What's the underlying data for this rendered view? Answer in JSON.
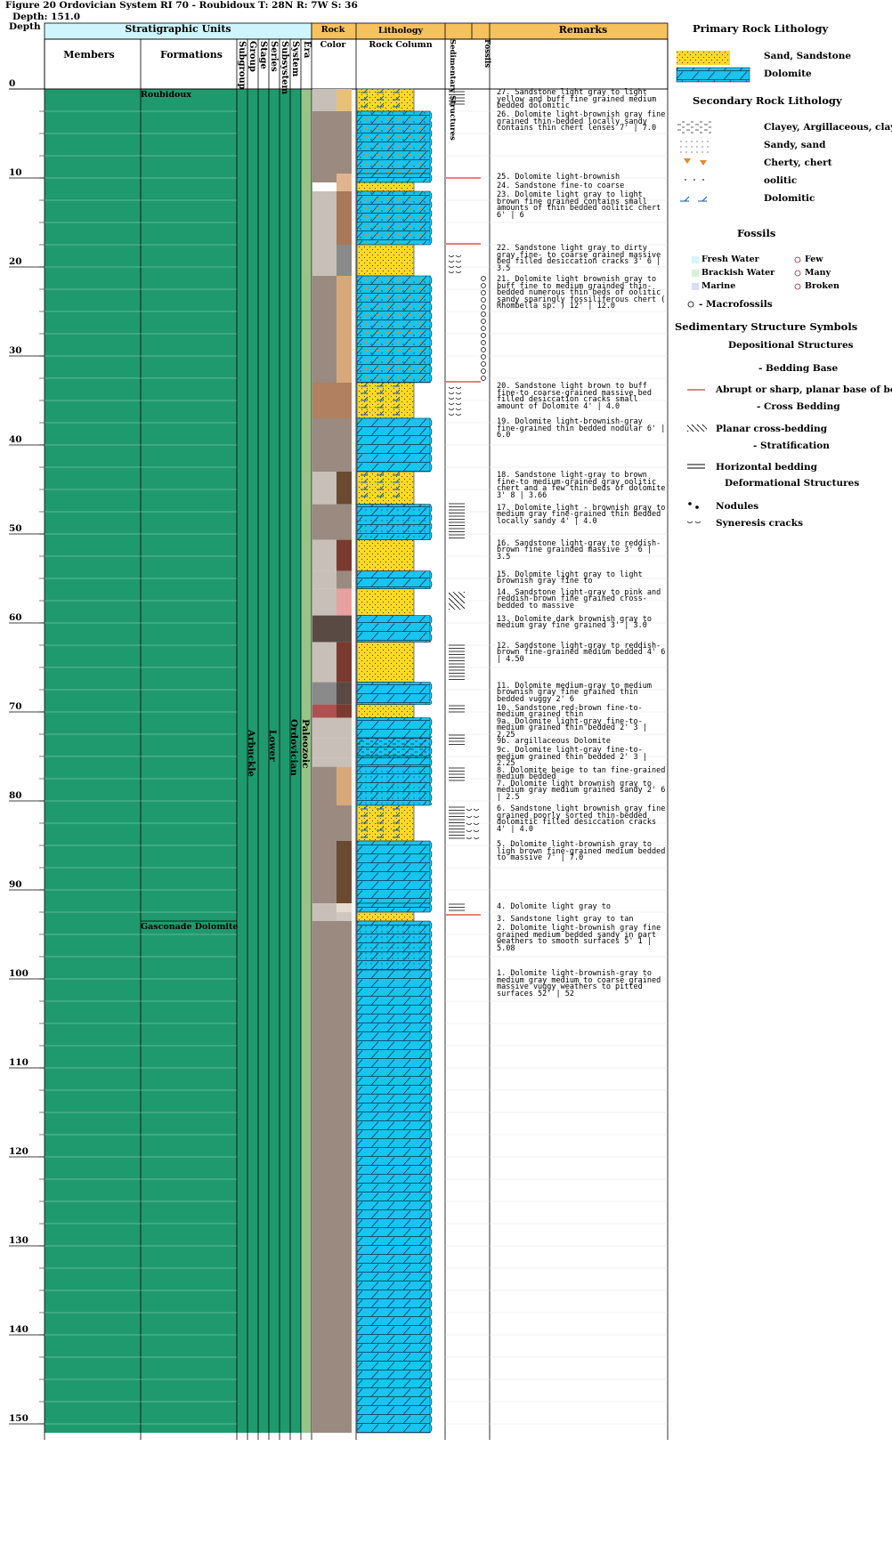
{
  "header": {
    "title": "Figure 20 Ordovician System RI 70 - Roubidoux T: 28N R: 7W S: 36",
    "depth": "Depth: 151.0",
    "depth_col_label": "Depth"
  },
  "columns": {
    "strat_units": "Stratigraphic Units",
    "members": "Members",
    "formations": "Formations",
    "subgroup": "Subgroup",
    "group": "Group",
    "stage": "Stage",
    "series": "Series",
    "subsystem": "Subsystem",
    "system": "System",
    "era": "Era",
    "rock": "Rock",
    "color": "Color",
    "lithology": "Lithology",
    "rock_column": "Rock Column",
    "sed_structures": "Sedimentary Structures",
    "fossils": "Fossils",
    "remarks": "Remarks"
  },
  "depth_ticks": [
    "0",
    "10",
    "20",
    "30",
    "40",
    "50",
    "60",
    "70",
    "80",
    "90",
    "100",
    "110",
    "120",
    "130",
    "140",
    "150"
  ],
  "formation_labels": [
    {
      "text": "Roubidoux"
    },
    {
      "text": "Gasconade Dolomite"
    }
  ],
  "vertical_units": {
    "group": "Arbuckle",
    "series": "Lower",
    "system": "Ordovician",
    "era": "Paleozoic"
  },
  "layers": [
    {
      "top": 0.0,
      "bottom": 2.5,
      "litho": "sandstone",
      "sec": "dolomitic",
      "colors": [
        "#c8c0b8",
        "#e8c07a"
      ]
    },
    {
      "top": 2.5,
      "bottom": 9.5,
      "litho": "dolomite",
      "sec": "sandy-cherty",
      "colors": [
        "#9b8a80",
        "#9b8a80"
      ]
    },
    {
      "top": 9.5,
      "bottom": 10.5,
      "litho": "dolomite",
      "sec": "none",
      "colors": [
        "#9b8a80",
        "#e0b48c"
      ]
    },
    {
      "top": 10.5,
      "bottom": 11.5,
      "litho": "sandstone",
      "sec": "none",
      "colors": [
        "#ffffff",
        "#e0b48c"
      ]
    },
    {
      "top": 11.5,
      "bottom": 17.5,
      "litho": "dolomite",
      "sec": "oolitic-cherty",
      "colors": [
        "#c8c0b8",
        "#a87858"
      ]
    },
    {
      "top": 17.5,
      "bottom": 21.0,
      "litho": "sandstone",
      "sec": "none",
      "colors": [
        "#c8c0b8",
        "#8a8a8a"
      ]
    },
    {
      "top": 21.0,
      "bottom": 33.0,
      "litho": "dolomite",
      "sec": "oolitic-cherty",
      "colors": [
        "#9b8a80",
        "#d9a87a"
      ]
    },
    {
      "top": 33.0,
      "bottom": 37.0,
      "litho": "sandstone",
      "sec": "dolomitic",
      "colors": [
        "#b08060",
        "#b08060"
      ]
    },
    {
      "top": 37.0,
      "bottom": 43.0,
      "litho": "dolomite",
      "sec": "none",
      "colors": [
        "#9b8a80",
        "#9b8a80"
      ]
    },
    {
      "top": 43.0,
      "bottom": 46.66,
      "litho": "sandstone",
      "sec": "dolomitic",
      "colors": [
        "#c8c0b8",
        "#6a4a30"
      ]
    },
    {
      "top": 46.66,
      "bottom": 50.66,
      "litho": "dolomite",
      "sec": "sandy",
      "colors": [
        "#9b8a80",
        "#9b8a80"
      ]
    },
    {
      "top": 50.66,
      "bottom": 54.16,
      "litho": "sandstone",
      "sec": "none",
      "colors": [
        "#c8c0b8",
        "#7a3a30"
      ]
    },
    {
      "top": 54.16,
      "bottom": 56.16,
      "litho": "dolomite",
      "sec": "none",
      "colors": [
        "#c8c0b8",
        "#9b8a80"
      ]
    },
    {
      "top": 56.16,
      "bottom": 59.16,
      "litho": "sandstone",
      "sec": "none",
      "colors": [
        "#c8c0b8",
        "#e8a0a0"
      ]
    },
    {
      "top": 59.16,
      "bottom": 62.16,
      "litho": "dolomite",
      "sec": "none",
      "colors": [
        "#5a4a44",
        "#5a4a44"
      ]
    },
    {
      "top": 62.16,
      "bottom": 66.66,
      "litho": "sandstone",
      "sec": "none",
      "colors": [
        "#c8c0b8",
        "#7a3a30"
      ]
    },
    {
      "top": 66.66,
      "bottom": 69.16,
      "litho": "dolomite",
      "sec": "none",
      "colors": [
        "#8a8a8a",
        "#5a4a44"
      ]
    },
    {
      "top": 69.16,
      "bottom": 70.66,
      "litho": "sandstone",
      "sec": "none",
      "colors": [
        "#b05050",
        "#7a3a30"
      ]
    },
    {
      "top": 70.66,
      "bottom": 72.91,
      "litho": "dolomite",
      "sec": "none",
      "colors": [
        "#c8c0b8",
        "#c8c0b8"
      ]
    },
    {
      "top": 72.91,
      "bottom": 75.16,
      "litho": "dolomite",
      "sec": "clayey",
      "colors": [
        "#c8c0b8",
        "#c8c0b8"
      ]
    },
    {
      "top": 75.16,
      "bottom": 76.16,
      "litho": "dolomite",
      "sec": "none",
      "colors": [
        "#c8c0b8",
        "#c8c0b8"
      ]
    },
    {
      "top": 76.16,
      "bottom": 80.5,
      "litho": "dolomite",
      "sec": "sandy",
      "colors": [
        "#9b8a80",
        "#d9a87a"
      ]
    },
    {
      "top": 80.5,
      "bottom": 84.5,
      "litho": "sandstone",
      "sec": "dolomitic",
      "colors": [
        "#9b8a80",
        "#9b8a80"
      ]
    },
    {
      "top": 84.5,
      "bottom": 91.5,
      "litho": "dolomite",
      "sec": "none",
      "colors": [
        "#9b8a80",
        "#6a4a30"
      ]
    },
    {
      "top": 91.5,
      "bottom": 92.5,
      "litho": "dolomite",
      "sec": "none",
      "colors": [
        "#c8c0b8",
        "#e8dcd0"
      ]
    },
    {
      "top": 92.5,
      "bottom": 93.5,
      "litho": "sandstone",
      "sec": "none",
      "colors": [
        "#c8c0b8",
        "#d0c8c0"
      ]
    },
    {
      "top": 93.5,
      "bottom": 99.0,
      "litho": "dolomite",
      "sec": "sandy",
      "colors": [
        "#9b8a80",
        "#9b8a80"
      ]
    },
    {
      "top": 99.0,
      "bottom": 151.0,
      "litho": "dolomite",
      "sec": "none",
      "colors": [
        "#9b8a80",
        "#9b8a80"
      ]
    }
  ],
  "sed_structures": [
    {
      "top": 0.3,
      "bottom": 1.8,
      "type": "horizontal"
    },
    {
      "top": 10.0,
      "bottom": 10.2,
      "type": "base"
    },
    {
      "top": 17.4,
      "bottom": 17.6,
      "type": "base"
    },
    {
      "top": 18.5,
      "bottom": 20.5,
      "type": "syneresis"
    },
    {
      "top": 32.9,
      "bottom": 33.1,
      "type": "base"
    },
    {
      "top": 33.3,
      "bottom": 36.8,
      "type": "syneresis"
    },
    {
      "top": 46.6,
      "bottom": 50.6,
      "type": "horizontal"
    },
    {
      "top": 56.5,
      "bottom": 58.5,
      "type": "cross"
    },
    {
      "top": 62.5,
      "bottom": 66.5,
      "type": "horizontal"
    },
    {
      "top": 69.3,
      "bottom": 70.3,
      "type": "horizontal"
    },
    {
      "top": 72.6,
      "bottom": 73.8,
      "type": "horizontal"
    },
    {
      "top": 76.3,
      "bottom": 78.0,
      "type": "horizontal"
    },
    {
      "top": 80.7,
      "bottom": 84.3,
      "type": "horizontal-syneresis"
    },
    {
      "top": 91.6,
      "bottom": 92.6,
      "type": "horizontal"
    },
    {
      "top": 92.8,
      "bottom": 92.9,
      "type": "base"
    }
  ],
  "fossil_range": {
    "top": 21.0,
    "bottom": 33.0
  },
  "remarks": [
    {
      "depth": 0.0,
      "text": "27. Sandstone light gray to light yellow and buff fine grained medium bedded dolomitic"
    },
    {
      "depth": 2.5,
      "text": "26. Dolomite light-brownish gray fine grained thin-bedded locally sandy contains thin chert lenses 7' | 7.0"
    },
    {
      "depth": 9.5,
      "text": "25. Dolomite light-brownish"
    },
    {
      "depth": 10.5,
      "text": "24. Sandstone fine-to coarse"
    },
    {
      "depth": 11.5,
      "text": "23. Dolomite light gray to light brown fine grained contains small amounts of thin bedded oolitic chert 6' | 6"
    },
    {
      "depth": 17.5,
      "text": "22. Sandstone light gray to dirty gray fine- to coarse grained massive bed filled desiccation cracks 3' 6 | 3.5"
    },
    {
      "depth": 21.0,
      "text": "21. Dolomite light brownish gray to buff fine to medium grainded thin-bedded numerous thin beds of oolitic sandy sparingly fossiliferous chert ( Rhombella sp. ) 12' | 12.0"
    },
    {
      "depth": 33.0,
      "text": "20. Sandstone light brown to buff fine-to coarse-grained massive bed filled desiccation cracks small amount of Dolomite 4' | 4.0"
    },
    {
      "depth": 37.0,
      "text": "19. Dolomite light-brownish-gray fine-grained thin bedded nodular 6' | 6.0"
    },
    {
      "depth": 43.0,
      "text": "18. Sandstone light-gray to brown fine-to medium-grained gray oolitic chert and a few thin beds of dolomite 3' 8 | 3.66"
    },
    {
      "depth": 46.66,
      "text": "17. Dolomite light - brownish gray to medium gray fine-grained thin bedded locally sandy 4' | 4.0"
    },
    {
      "depth": 50.66,
      "text": "16. Sandstone light-gray to reddish-brown fine grainded massive 3' 6 | 3.5"
    },
    {
      "depth": 54.16,
      "text": "15. Dolomite light gray to light brownish gray fine to"
    },
    {
      "depth": 56.16,
      "text": "14. Sandstone light-gray to pink and reddish-brown fine grained cross-bedded to massive"
    },
    {
      "depth": 59.16,
      "text": "13. Dolomite dark brownish gray to medium gray fine grained 3' | 3.0"
    },
    {
      "depth": 62.16,
      "text": "12. Sandstone light-gray to reddish-brown fine-grained medium bedded 4' 6 | 4.50"
    },
    {
      "depth": 66.66,
      "text": "11. Dolomite medium-gray to medium brownish gray fine grained thin bedded vuggy 2' 6"
    },
    {
      "depth": 69.16,
      "text": "10. Sandstone red-brown fine-to-medium grained thin"
    },
    {
      "depth": 70.66,
      "text": "9a. Dolomite light-gray fine-to-medium grained thin bedded 2' 3 | 2.25"
    },
    {
      "depth": 72.91,
      "text": "9b. argillaceous Dolomite"
    },
    {
      "depth": 73.91,
      "text": "9c. Dolomite light-gray fine-to-medium grained thin bedded 2' 3 | 2.25"
    },
    {
      "depth": 76.16,
      "text": "8. Dolomite beige to tan fine-grained medium bedded"
    },
    {
      "depth": 77.66,
      "text": "7. Dolomite light brownish gray to medium gray medium grained sandy 2' 6 | 2.5"
    },
    {
      "depth": 80.5,
      "text": "6. Sandstone light brownish gray fine grained poorly sorted thin-bedded dolomitic filled desiccation cracks 4' | 4.0"
    },
    {
      "depth": 84.5,
      "text": "5. Dolomite light-brownish gray to ligh brown fine-grained medium bedded to massive 7' | 7.0"
    },
    {
      "depth": 91.5,
      "text": "4. Dolomite light gray to"
    },
    {
      "depth": 92.9,
      "text": "3. Sandstone light gray to tan"
    },
    {
      "depth": 93.9,
      "text": "2. Dolomite light-brownish gray fine grained medium bedded sandy in part weathers to smooth surfaces 5' 1 | 5.08"
    },
    {
      "depth": 99.0,
      "text": "1. Dolomite light-brownish-gray to medium gray medium to coarse grained massive vuggy weathers to pitted surfaces 52' | 52"
    }
  ],
  "legend": {
    "primary_title": "Primary Rock Lithology",
    "primary": [
      {
        "key": "sandstone",
        "label": "Sand, Sandstone"
      },
      {
        "key": "dolomite",
        "label": "Dolomite"
      }
    ],
    "secondary_title": "Secondary Rock Lithology",
    "secondary": [
      {
        "key": "clayey",
        "label": "Clayey, Argillaceous, clay"
      },
      {
        "key": "sandy",
        "label": "Sandy, sand"
      },
      {
        "key": "cherty",
        "label": "Cherty, chert"
      },
      {
        "key": "oolitic",
        "label": "oolitic"
      },
      {
        "key": "dolomitic",
        "label": "Dolomitic"
      }
    ],
    "fossils_title": "Fossils",
    "fossil_env": [
      {
        "label": "Fresh Water",
        "color": "#d8f4f8"
      },
      {
        "label": "Brackish Water",
        "color": "#d8f0d8"
      },
      {
        "label": "Marine",
        "color": "#dcdcf4"
      }
    ],
    "fossil_abund": [
      {
        "label": "Few"
      },
      {
        "label": "Many"
      },
      {
        "label": "Broken"
      }
    ],
    "macrofossils": "- Macrofossils",
    "sed_title": "Sedimentary Structure Symbols",
    "depositional": "Depositional Structures",
    "bedding_base": "- Bedding Base",
    "abrupt": "Abrupt or sharp, planar base of bed",
    "cross_bedding": "- Cross Bedding",
    "planar_cross": "Planar cross-bedding",
    "stratification": "- Stratification",
    "horizontal": "Horizontal bedding",
    "deformational": "Deformational Structures",
    "nodules": "Nodules",
    "syneresis": "Syneresis cracks"
  },
  "colors": {
    "strat_header": "#cdf5fb",
    "rock_header": "#f5c25d",
    "member_fill": "#1f9a6e",
    "era_fill": "#98c48a",
    "dolomite_blue": "#17c5ef",
    "sand_yellow": "#ffd926",
    "base_red": "#e03030"
  }
}
